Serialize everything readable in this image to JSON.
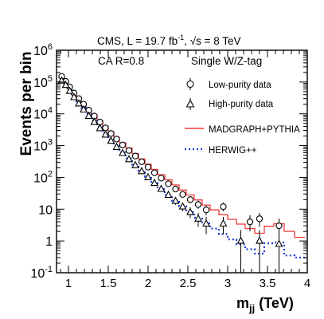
{
  "colors": {
    "frame": "#000000",
    "mc_madgraph": "#f03a3a",
    "mc_herwig": "#1f3fd6",
    "data": "#000000"
  },
  "chart_data": {
    "type": "line",
    "title": "CMS, L = 19.7 fb",
    "title_exp": "-1",
    "title_tail": ", √s = 8 TeV",
    "text_left": "CA R=0.8",
    "text_right": "Single W/Z-tag",
    "xlabel_main": "m",
    "xlabel_sub": "jj",
    "xlabel_unit": " (TeV)",
    "ylabel": "Events per bin",
    "xlim": [
      0.85,
      4.0
    ],
    "ylim": [
      0.1,
      1000000
    ],
    "log_y": true,
    "grid": false,
    "legend_position": "top-right",
    "x_ticks": [
      "1",
      "1.5",
      "2",
      "2.5",
      "3",
      "3.5",
      "4"
    ],
    "x_tick_values": [
      1,
      1.5,
      2,
      2.5,
      3,
      3.5,
      4
    ],
    "y_ticks": [
      {
        "base": "10",
        "exp": "-1",
        "value": 0.1
      },
      {
        "base": "1",
        "exp": "",
        "value": 1
      },
      {
        "base": "10",
        "exp": "",
        "value": 10
      },
      {
        "base": "10",
        "exp": "2",
        "value": 100
      },
      {
        "base": "10",
        "exp": "3",
        "value": 1000
      },
      {
        "base": "10",
        "exp": "4",
        "value": 10000
      },
      {
        "base": "10",
        "exp": "5",
        "value": 100000
      },
      {
        "base": "10",
        "exp": "6",
        "value": 1000000
      }
    ],
    "bin_edges": [
      0.89,
      0.94,
      0.99,
      1.04,
      1.1,
      1.16,
      1.22,
      1.29,
      1.36,
      1.43,
      1.5,
      1.57,
      1.64,
      1.72,
      1.8,
      1.88,
      1.96,
      2.04,
      2.12,
      2.21,
      2.3,
      2.39,
      2.48,
      2.58,
      2.68,
      2.78,
      2.89,
      3.0,
      3.11,
      3.22,
      3.34,
      3.46,
      3.58,
      3.71,
      3.84,
      3.97
    ],
    "series": [
      {
        "name": "Low-purity data",
        "kind": "data",
        "marker": "open-circle",
        "values": [
          150000,
          105000,
          70000,
          45000,
          30000,
          20000,
          13000,
          8500,
          5500,
          3600,
          2400,
          1600,
          1050,
          700,
          470,
          310,
          210,
          140,
          95,
          63,
          43,
          29,
          20,
          14,
          9.5,
          6.5,
          12,
          4.5,
          3.0,
          4.0,
          5.0,
          2.0,
          3.0,
          1.5,
          1.5
        ],
        "show": [
          true,
          true,
          true,
          true,
          true,
          true,
          true,
          true,
          true,
          true,
          true,
          true,
          true,
          true,
          true,
          true,
          true,
          true,
          true,
          true,
          true,
          true,
          true,
          true,
          true,
          false,
          true,
          false,
          false,
          true,
          true,
          false,
          true,
          false,
          false
        ]
      },
      {
        "name": "High-purity data",
        "kind": "data",
        "marker": "open-triangle",
        "values": [
          110000,
          80000,
          52000,
          33000,
          21000,
          13500,
          8500,
          5500,
          3500,
          2200,
          1400,
          900,
          580,
          370,
          240,
          155,
          100,
          66,
          43,
          28,
          18,
          12,
          8,
          5,
          3.5,
          2.5,
          3.5,
          1.5,
          1.0,
          1.0,
          1.0,
          1.0,
          0.8,
          1.0,
          0.6
        ],
        "show": [
          true,
          true,
          true,
          true,
          true,
          true,
          true,
          true,
          true,
          true,
          true,
          true,
          true,
          true,
          true,
          true,
          true,
          true,
          true,
          true,
          true,
          true,
          true,
          true,
          true,
          false,
          true,
          false,
          true,
          false,
          true,
          false,
          true,
          false,
          false
        ]
      },
      {
        "name": "MADGRAPH+PYTHIA",
        "kind": "mc",
        "style": "solid",
        "values": [
          160000,
          112000,
          75000,
          48000,
          32000,
          21000,
          14000,
          9300,
          6200,
          4100,
          2750,
          1830,
          1230,
          830,
          560,
          380,
          260,
          178,
          122,
          84,
          58,
          40,
          28,
          19.5,
          13.5,
          9.5,
          6.7,
          4.8,
          3.4,
          2.45,
          1.75,
          2.9,
          3.5,
          2.0,
          1.3
        ]
      },
      {
        "name": "HERWIG++",
        "kind": "mc",
        "style": "dotted",
        "values": [
          140000,
          96000,
          62000,
          39000,
          24500,
          15500,
          9800,
          6200,
          3900,
          2450,
          1550,
          980,
          620,
          395,
          252,
          162,
          104,
          67,
          43,
          28,
          18.5,
          12.2,
          8.1,
          5.4,
          3.6,
          2.45,
          1.65,
          1.12,
          0.78,
          0.55,
          0.4,
          0.85,
          0.9,
          0.35,
          0.3
        ]
      }
    ]
  }
}
